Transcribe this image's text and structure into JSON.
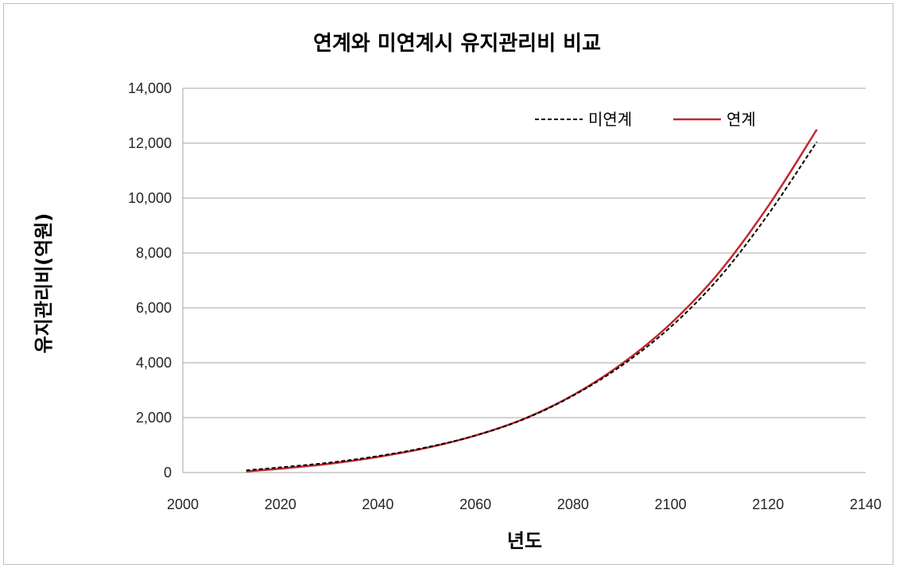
{
  "colors": {
    "grid": "#a6a6a6",
    "linked": "#c0282d",
    "unlinked": "#000000",
    "axis_text": "#262626"
  },
  "chart_data": {
    "type": "line",
    "title": "연계와 미연계시 유지관리비 비교",
    "xlabel": "년도",
    "ylabel": "유지관리비(억원)",
    "xlim": [
      2000,
      2140
    ],
    "ylim": [
      0,
      14000
    ],
    "x_ticks": [
      2000,
      2020,
      2040,
      2060,
      2080,
      2100,
      2120,
      2140
    ],
    "y_ticks": [
      0,
      2000,
      4000,
      6000,
      8000,
      10000,
      12000,
      14000
    ],
    "x_tick_labels": [
      "2000",
      "2020",
      "2040",
      "2060",
      "2080",
      "2100",
      "2120",
      "2140"
    ],
    "y_tick_labels": [
      "0",
      "2,000",
      "4,000",
      "6,000",
      "8,000",
      "10,000",
      "12,000",
      "14,000"
    ],
    "grid": "horizontal",
    "legend_position": "top-right",
    "series": [
      {
        "name": "미연계",
        "style": "dashed",
        "x": [
          2013,
          2020,
          2030,
          2040,
          2050,
          2060,
          2070,
          2080,
          2090,
          2100,
          2110,
          2120,
          2130
        ],
        "values": [
          80,
          190,
          360,
          600,
          920,
          1350,
          1950,
          2800,
          3900,
          5300,
          7100,
          9400,
          12050
        ]
      },
      {
        "name": "연계",
        "style": "solid",
        "x": [
          2013,
          2020,
          2030,
          2040,
          2050,
          2060,
          2070,
          2080,
          2090,
          2100,
          2110,
          2120,
          2130
        ],
        "values": [
          40,
          140,
          320,
          570,
          900,
          1350,
          1960,
          2820,
          3960,
          5420,
          7300,
          9700,
          12500
        ]
      }
    ]
  }
}
